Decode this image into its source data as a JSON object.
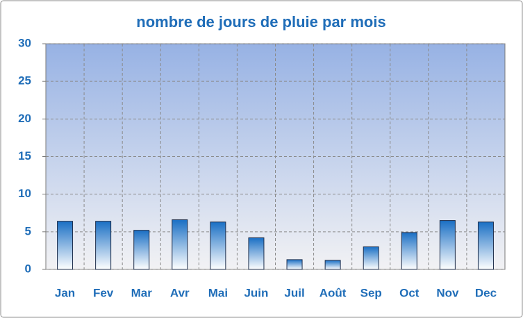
{
  "chart_data": {
    "type": "bar",
    "title": "nombre de jours de pluie par mois",
    "categories": [
      "Jan",
      "Fev",
      "Mar",
      "Avr",
      "Mai",
      "Juin",
      "Juil",
      "Août",
      "Sep",
      "Oct",
      "Nov",
      "Dec"
    ],
    "values": [
      6.4,
      6.4,
      5.2,
      6.6,
      6.3,
      4.2,
      1.3,
      1.2,
      3.0,
      4.9,
      6.5,
      6.3
    ],
    "color": "#1a6fc4",
    "ylim": [
      0,
      30
    ],
    "yticks": [
      0,
      5,
      10,
      15,
      20,
      25,
      30
    ],
    "grid": true
  }
}
